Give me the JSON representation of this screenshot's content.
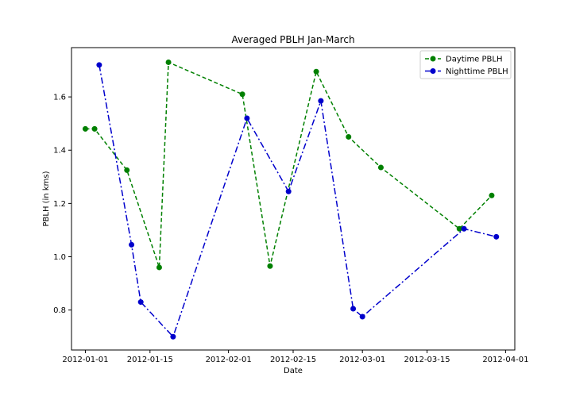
{
  "chart_data": {
    "type": "line",
    "title": "Averaged PBLH Jan-March",
    "xlabel": "Date",
    "ylabel": "PBLH (in kms)",
    "x_ticks": [
      "2012-01-01",
      "2012-01-15",
      "2012-02-01",
      "2012-02-15",
      "2012-03-01",
      "2012-03-15",
      "2012-04-01"
    ],
    "y_ticks": [
      "0.8",
      "1.0",
      "1.2",
      "1.4",
      "1.6"
    ],
    "xlim": [
      "2011-12-29",
      "2012-04-03"
    ],
    "ylim": [
      0.65,
      1.785
    ],
    "grid": false,
    "legend_position": "top-right",
    "series": [
      {
        "name": "Daytime PBLH",
        "color": "#008000",
        "line_style": "dashed",
        "marker": "circle",
        "points": [
          {
            "x": "2012-01-01",
            "y": 1.48
          },
          {
            "x": "2012-01-03",
            "y": 1.48
          },
          {
            "x": "2012-01-10",
            "y": 1.325
          },
          {
            "x": "2012-01-17",
            "y": 0.96
          },
          {
            "x": "2012-01-19",
            "y": 1.73
          },
          {
            "x": "2012-02-04",
            "y": 1.61
          },
          {
            "x": "2012-02-10",
            "y": 0.965
          },
          {
            "x": "2012-02-20",
            "y": 1.695
          },
          {
            "x": "2012-02-27",
            "y": 1.45
          },
          {
            "x": "2012-03-05",
            "y": 1.335
          },
          {
            "x": "2012-03-22",
            "y": 1.105
          },
          {
            "x": "2012-03-29",
            "y": 1.23
          }
        ]
      },
      {
        "name": "Nighttime PBLH",
        "color": "#0000cc",
        "line_style": "dashdot",
        "marker": "circle",
        "points": [
          {
            "x": "2012-01-04",
            "y": 1.72
          },
          {
            "x": "2012-01-11",
            "y": 1.045
          },
          {
            "x": "2012-01-13",
            "y": 0.83
          },
          {
            "x": "2012-01-20",
            "y": 0.7
          },
          {
            "x": "2012-02-05",
            "y": 1.52
          },
          {
            "x": "2012-02-14",
            "y": 1.245
          },
          {
            "x": "2012-02-21",
            "y": 1.585
          },
          {
            "x": "2012-02-28",
            "y": 0.805
          },
          {
            "x": "2012-03-01",
            "y": 0.775
          },
          {
            "x": "2012-03-23",
            "y": 1.105
          },
          {
            "x": "2012-03-30",
            "y": 1.075
          }
        ]
      }
    ]
  }
}
